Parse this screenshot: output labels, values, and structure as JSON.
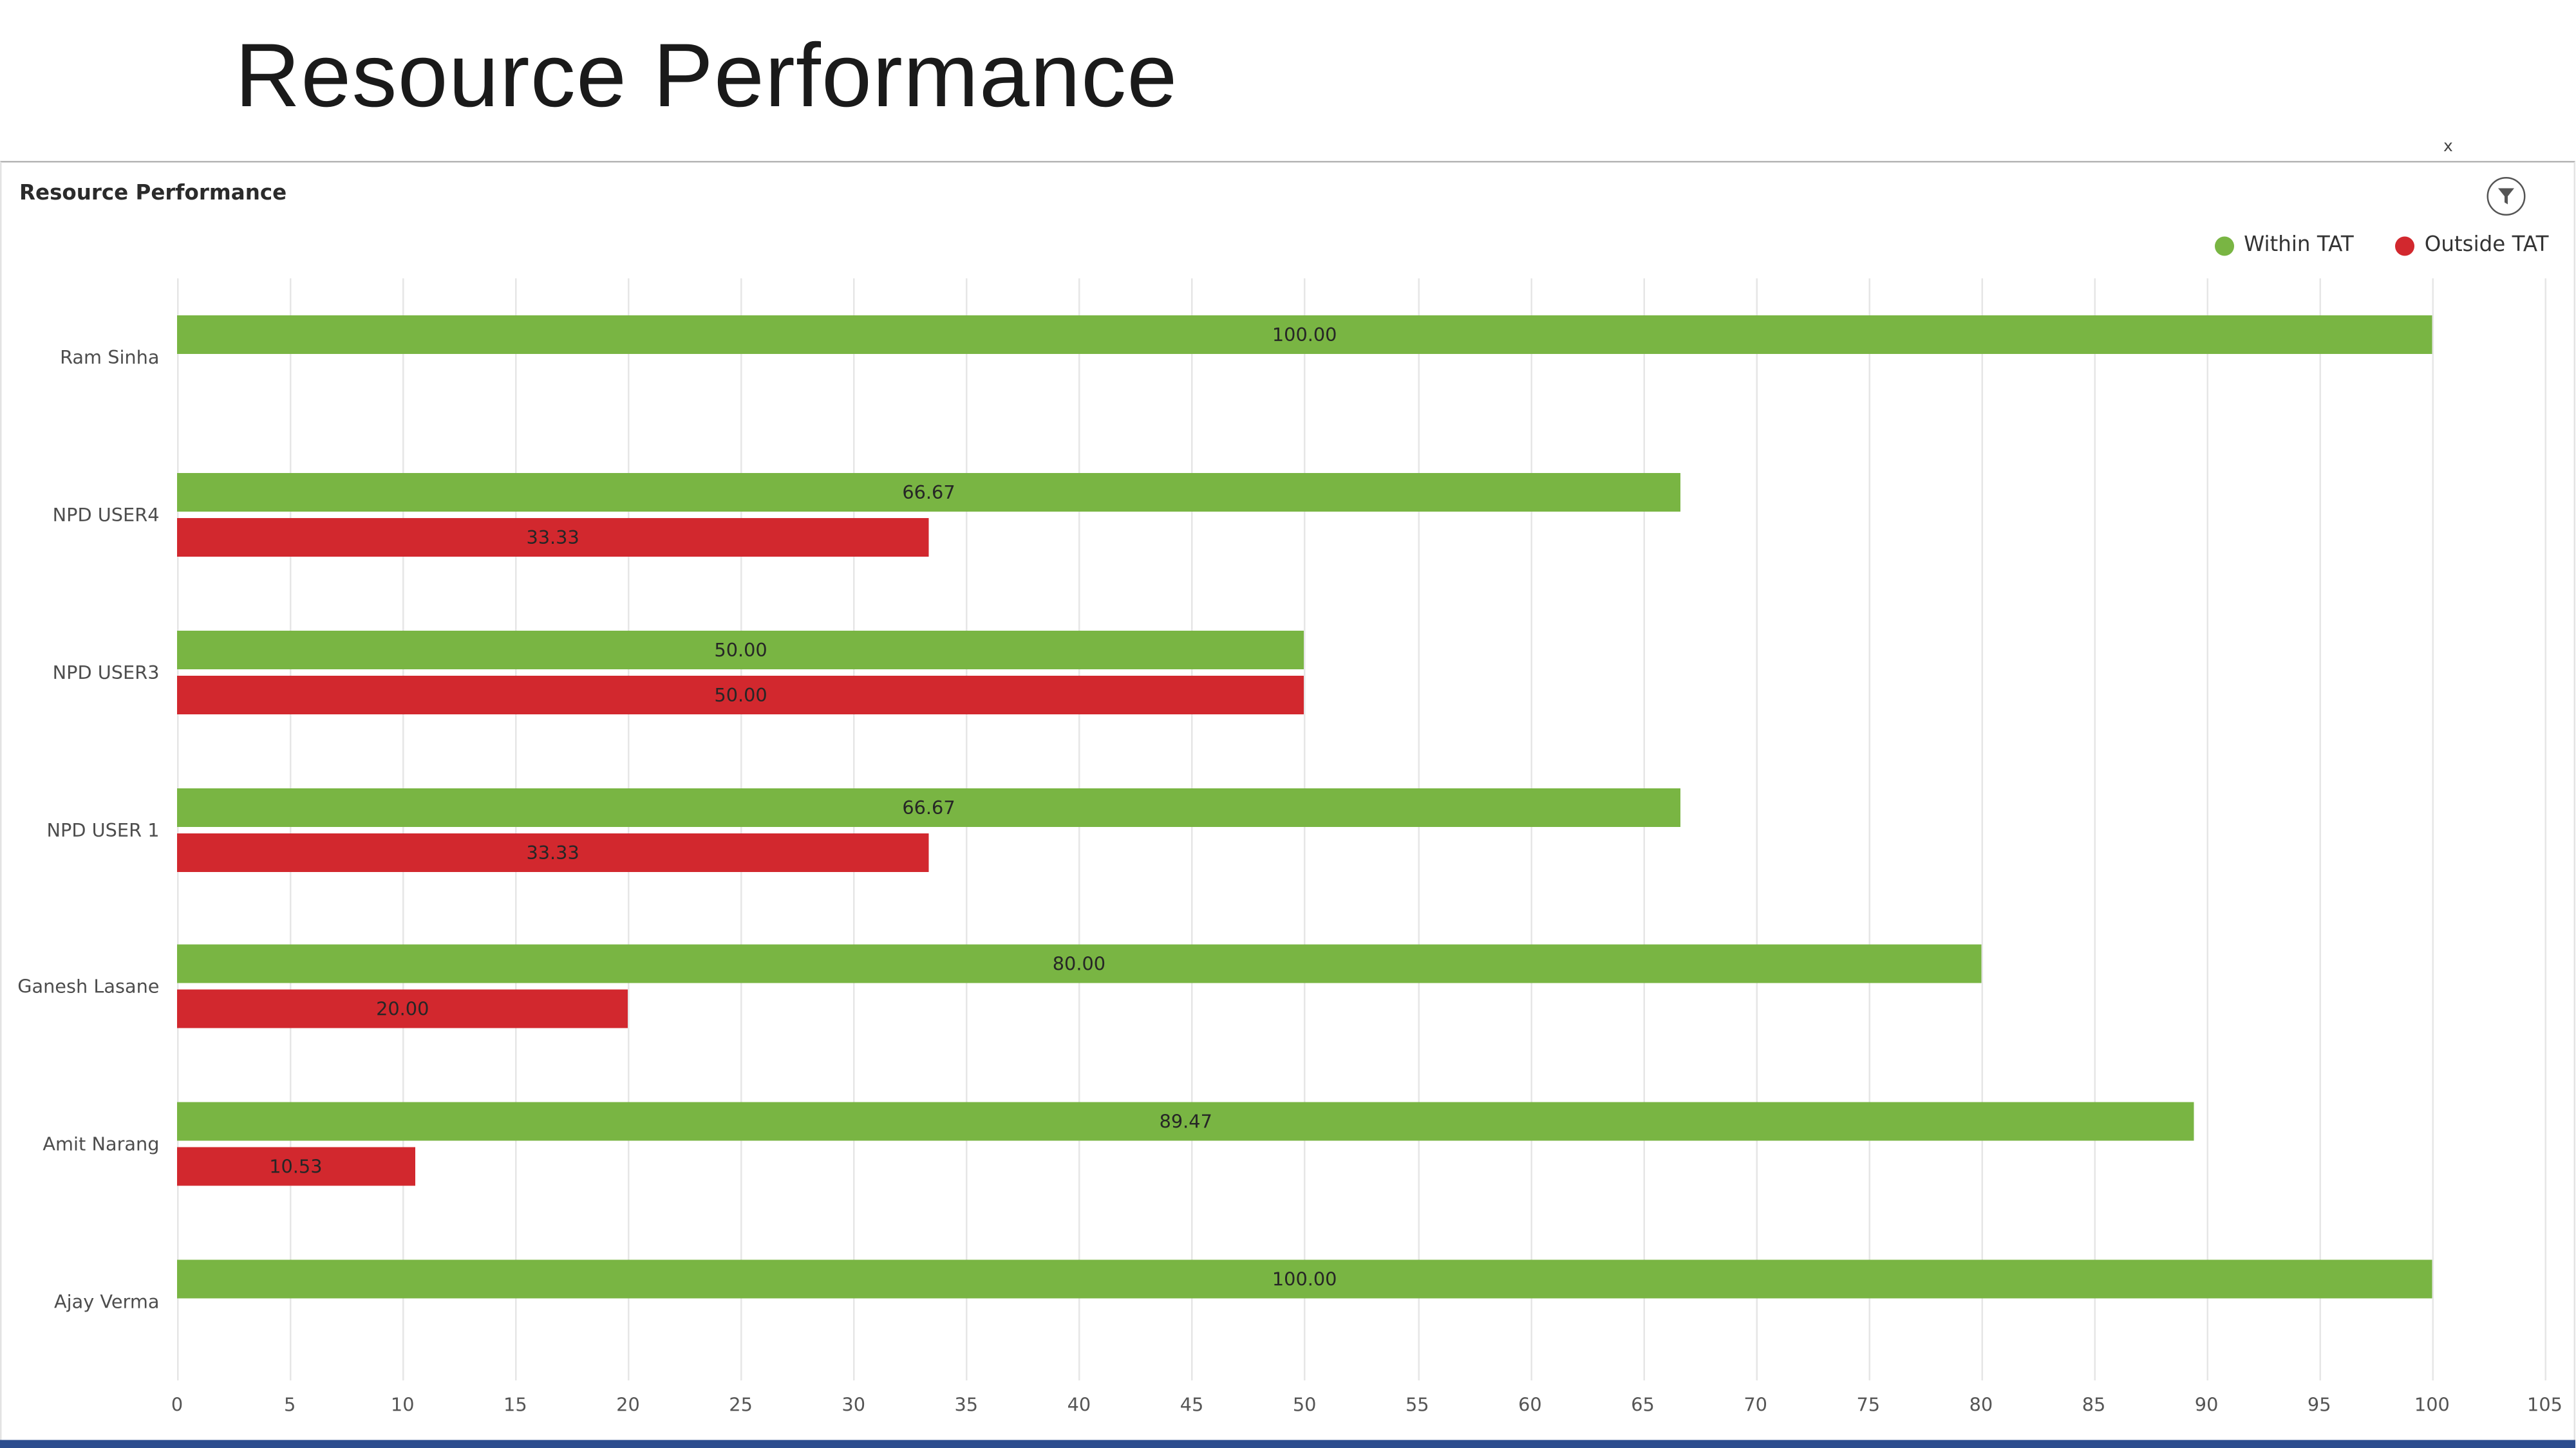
{
  "page": {
    "title": "Resource Performance"
  },
  "panel": {
    "header": "Resource Performance",
    "close_label": "x"
  },
  "chart_data": {
    "type": "bar",
    "orientation": "horizontal",
    "title": "Resource Performance",
    "categories": [
      "Ram Sinha",
      "NPD USER4",
      "NPD USER3",
      "NPD USER 1",
      "Ganesh Lasane",
      "Amit Narang",
      "Ajay Verma"
    ],
    "series": [
      {
        "name": "Within TAT",
        "color": "#79b543",
        "values": [
          100.0,
          66.67,
          50.0,
          66.67,
          80.0,
          89.47,
          100.0
        ]
      },
      {
        "name": "Outside TAT",
        "color": "#d2282e",
        "values": [
          null,
          33.33,
          50.0,
          33.33,
          20.0,
          10.53,
          null
        ]
      }
    ],
    "xlim": [
      0,
      105
    ],
    "x_ticks": [
      0,
      5,
      10,
      15,
      20,
      25,
      30,
      35,
      40,
      45,
      50,
      55,
      60,
      65,
      70,
      75,
      80,
      85,
      90,
      95,
      100,
      105
    ],
    "grid": true,
    "legend_position": "top-right",
    "value_label_format": "two_decimals",
    "xlabel": "",
    "ylabel": ""
  }
}
